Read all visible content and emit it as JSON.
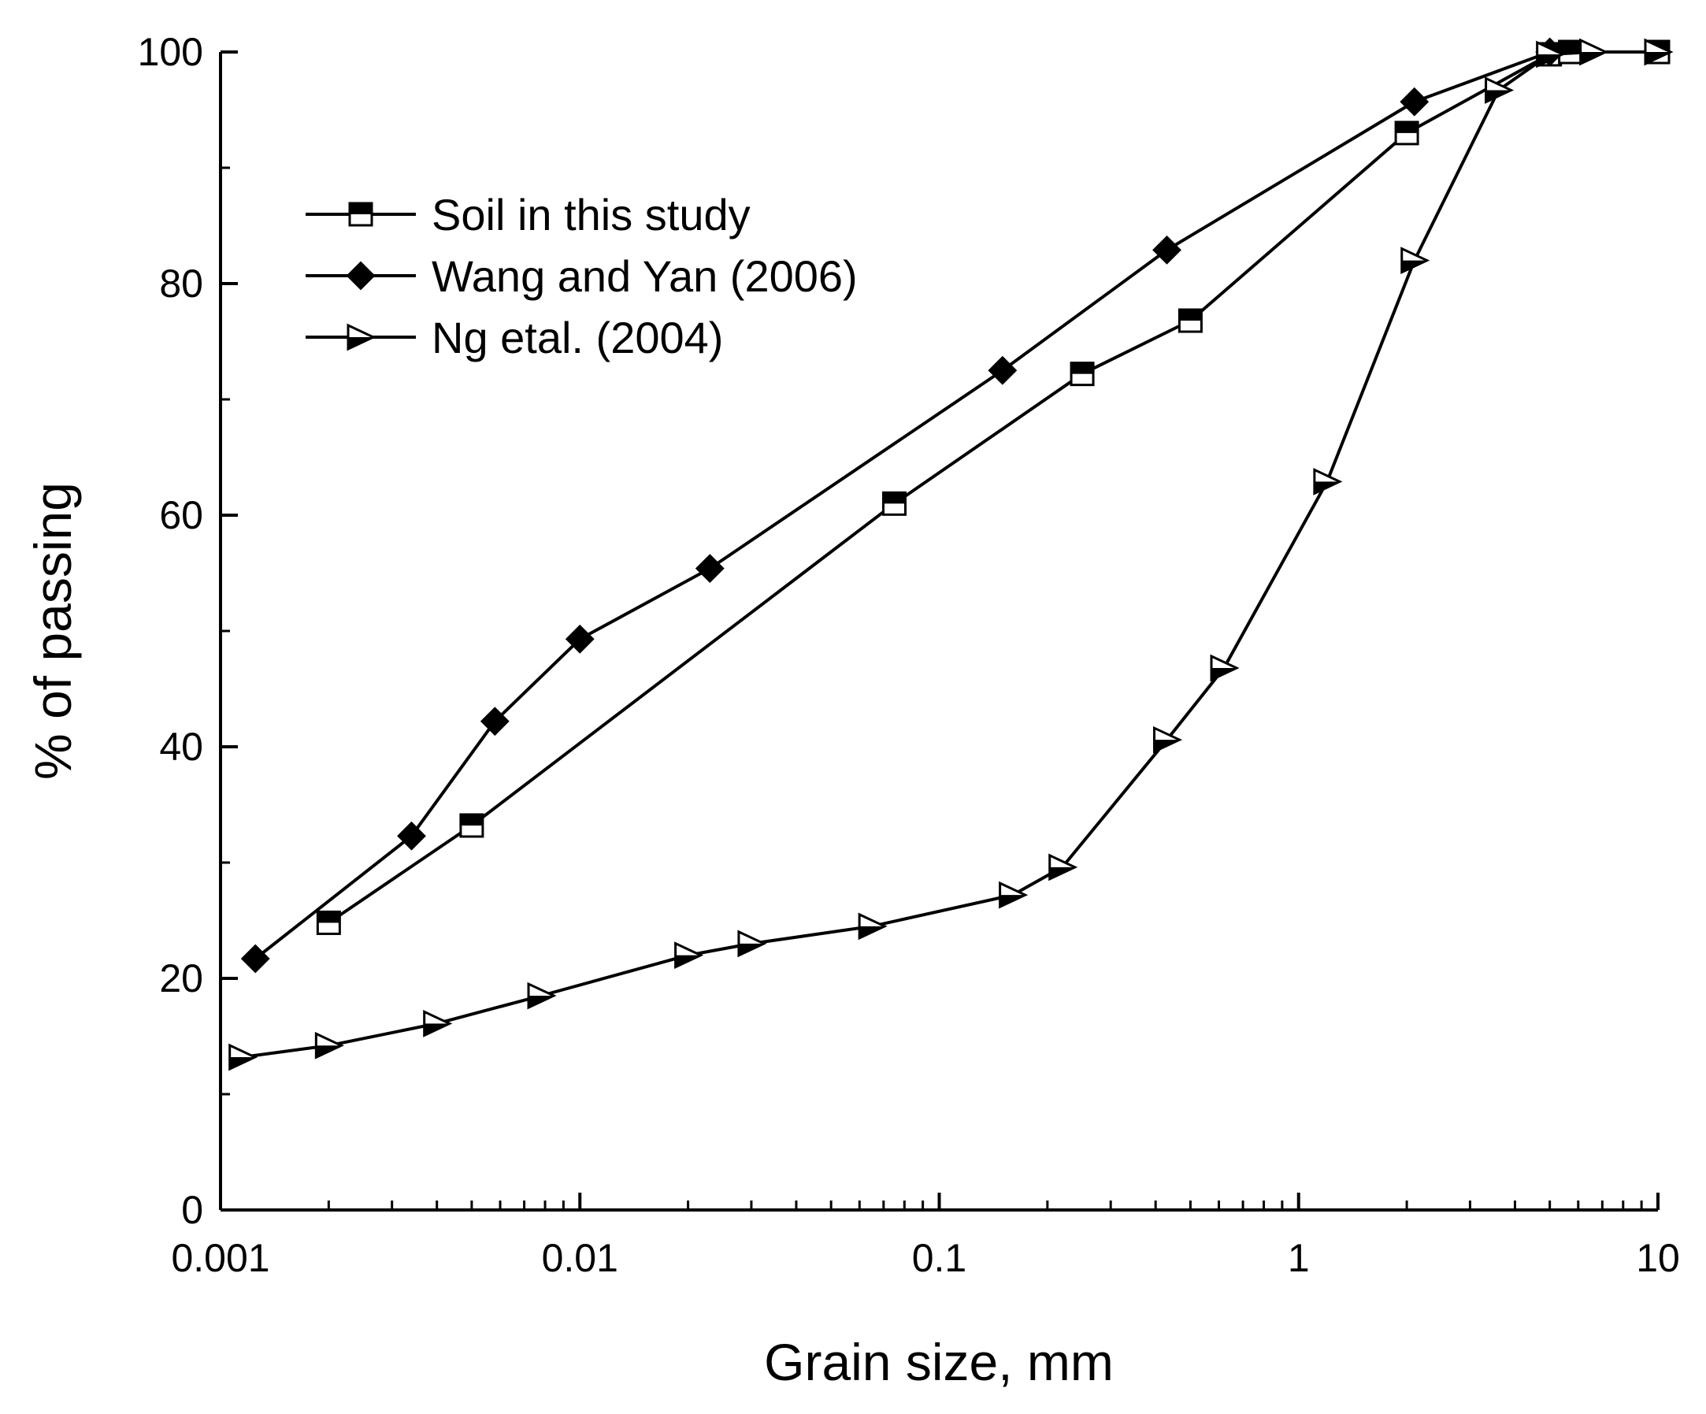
{
  "chart_data": {
    "type": "line",
    "title": "",
    "xlabel": "Grain size, mm",
    "ylabel": "% of passing",
    "xscale": "log",
    "xlim": [
      0.001,
      10
    ],
    "ylim": [
      0,
      100
    ],
    "xticks": [
      {
        "value": 0.001,
        "label": "0.001"
      },
      {
        "value": 0.01,
        "label": "0.01"
      },
      {
        "value": 0.1,
        "label": "0.1"
      },
      {
        "value": 1,
        "label": "1"
      },
      {
        "value": 10,
        "label": "10"
      }
    ],
    "yticks": [
      {
        "value": 0,
        "label": "0"
      },
      {
        "value": 20,
        "label": "20"
      },
      {
        "value": 40,
        "label": "40"
      },
      {
        "value": 60,
        "label": "60"
      },
      {
        "value": 80,
        "label": "80"
      },
      {
        "value": 100,
        "label": "100"
      }
    ],
    "legend_position": "top-left",
    "series": [
      {
        "name": "Soil in this study",
        "marker": "half-filled-square",
        "points": [
          {
            "x": 0.002,
            "y": 24.8
          },
          {
            "x": 0.005,
            "y": 33.2
          },
          {
            "x": 0.075,
            "y": 61.0
          },
          {
            "x": 0.25,
            "y": 72.2
          },
          {
            "x": 0.5,
            "y": 76.8
          },
          {
            "x": 2.0,
            "y": 93.0
          },
          {
            "x": 5.0,
            "y": 99.8
          },
          {
            "x": 5.7,
            "y": 100
          },
          {
            "x": 10,
            "y": 100
          }
        ]
      },
      {
        "name": "Wang and Yan (2006)",
        "marker": "filled-diamond",
        "points": [
          {
            "x": 0.00125,
            "y": 21.7
          },
          {
            "x": 0.0034,
            "y": 32.3
          },
          {
            "x": 0.0058,
            "y": 42.2
          },
          {
            "x": 0.01,
            "y": 49.3
          },
          {
            "x": 0.023,
            "y": 55.4
          },
          {
            "x": 0.15,
            "y": 72.5
          },
          {
            "x": 0.43,
            "y": 82.9
          },
          {
            "x": 2.1,
            "y": 95.7
          },
          {
            "x": 5.0,
            "y": 100
          }
        ]
      },
      {
        "name": "Ng etal. (2004)",
        "marker": "half-filled-triangle-right",
        "points": [
          {
            "x": 0.00115,
            "y": 13.2
          },
          {
            "x": 0.002,
            "y": 14.2
          },
          {
            "x": 0.004,
            "y": 16.1
          },
          {
            "x": 0.0078,
            "y": 18.5
          },
          {
            "x": 0.02,
            "y": 22.0
          },
          {
            "x": 0.03,
            "y": 23.0
          },
          {
            "x": 0.065,
            "y": 24.5
          },
          {
            "x": 0.16,
            "y": 27.2
          },
          {
            "x": 0.22,
            "y": 29.6
          },
          {
            "x": 0.43,
            "y": 40.6
          },
          {
            "x": 0.62,
            "y": 46.8
          },
          {
            "x": 1.2,
            "y": 62.9
          },
          {
            "x": 2.1,
            "y": 82.0
          },
          {
            "x": 3.6,
            "y": 96.7
          },
          {
            "x": 5.0,
            "y": 99.8
          },
          {
            "x": 6.6,
            "y": 100
          },
          {
            "x": 10,
            "y": 100
          }
        ]
      }
    ]
  }
}
